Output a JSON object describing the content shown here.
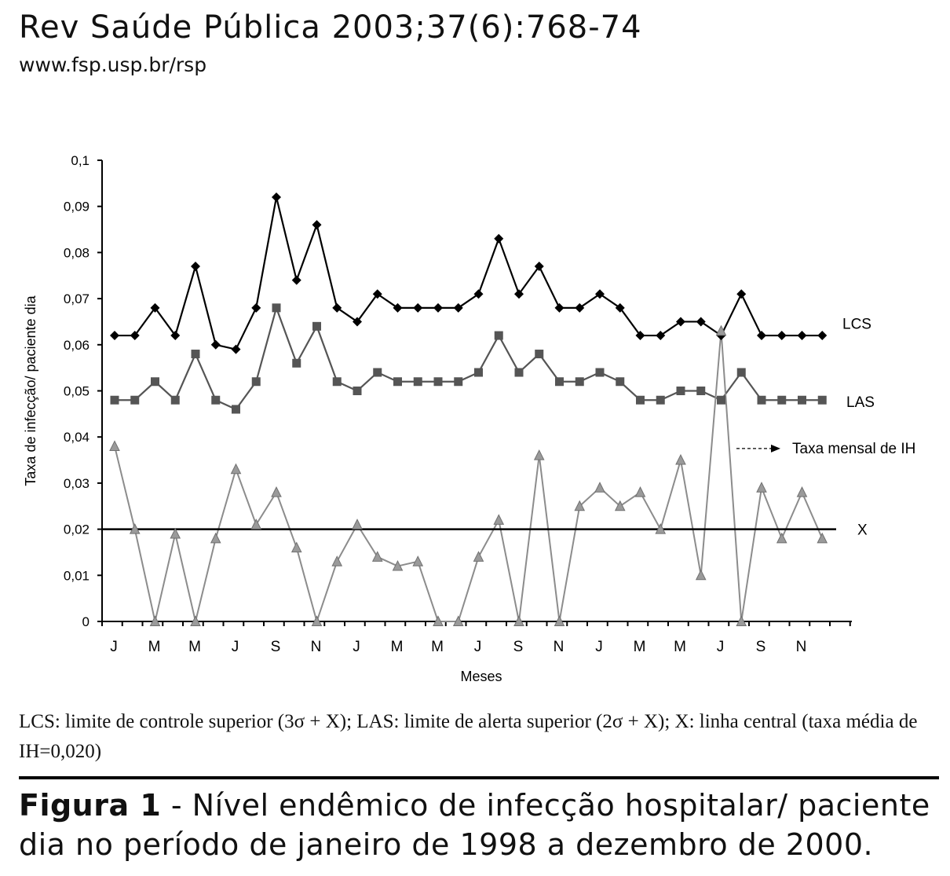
{
  "header": {
    "journal": "Rev Saúde Pública 2003;37(6):768-74",
    "url": "www.fsp.usp.br/rsp"
  },
  "chart_data": {
    "type": "line",
    "xlabel": "Meses",
    "ylabel": "Taxa de infecção/ paciente dia",
    "ylim": [
      0,
      0.1
    ],
    "yticks": [
      "0",
      "0,01",
      "0,02",
      "0,03",
      "0,04",
      "0,05",
      "0,06",
      "0,07",
      "0,08",
      "0,09",
      "0,1"
    ],
    "x_tick_labels": [
      "J",
      "M",
      "M",
      "J",
      "S",
      "N",
      "J",
      "M",
      "M",
      "J",
      "S",
      "N",
      "J",
      "M",
      "M",
      "J",
      "S",
      "N"
    ],
    "series": [
      {
        "name": "LCS",
        "marker": "diamond",
        "color": "#000000",
        "values": [
          0.062,
          0.062,
          0.068,
          0.062,
          0.077,
          0.06,
          0.059,
          0.068,
          0.092,
          0.074,
          0.086,
          0.068,
          0.065,
          0.071,
          0.068,
          0.068,
          0.068,
          0.068,
          0.071,
          0.083,
          0.071,
          0.077,
          0.068,
          0.068,
          0.071,
          0.068,
          0.062,
          0.062,
          0.065,
          0.065,
          0.062,
          0.071,
          0.062,
          0.062,
          0.062,
          0.062
        ]
      },
      {
        "name": "LAS",
        "marker": "square",
        "color": "#555555",
        "values": [
          0.048,
          0.048,
          0.052,
          0.048,
          0.058,
          0.048,
          0.046,
          0.052,
          0.068,
          0.056,
          0.064,
          0.052,
          0.05,
          0.054,
          0.052,
          0.052,
          0.052,
          0.052,
          0.054,
          0.062,
          0.054,
          0.058,
          0.052,
          0.052,
          0.054,
          0.052,
          0.048,
          0.048,
          0.05,
          0.05,
          0.048,
          0.054,
          0.048,
          0.048,
          0.048,
          0.048
        ]
      },
      {
        "name": "Taxa mensal de IH",
        "marker": "triangle",
        "color": "#8c8c8c",
        "values": [
          0.038,
          0.02,
          0.0,
          0.019,
          0.0,
          0.018,
          0.033,
          0.021,
          0.028,
          0.016,
          0.0,
          0.013,
          0.021,
          0.014,
          0.012,
          0.013,
          0.0,
          0.0,
          0.014,
          0.022,
          0.0,
          0.036,
          0.0,
          0.025,
          0.029,
          0.025,
          0.028,
          0.02,
          0.035,
          0.01,
          0.063,
          0.0,
          0.029,
          0.018,
          0.028,
          0.018
        ]
      },
      {
        "name": "X",
        "type": "constant",
        "color": "#000000",
        "value": 0.02
      }
    ]
  },
  "caption": {
    "legend_text": "LCS: limite de controle superior (3σ + X); LAS: limite de alerta superior (2σ + X); X: linha central (taxa média de IH=0,020)",
    "figure_label": "Figura 1",
    "figure_text": " - Nível endêmico de infecção hospitalar/ paciente dia no período de janeiro de 1998 a dezembro de 2000."
  }
}
